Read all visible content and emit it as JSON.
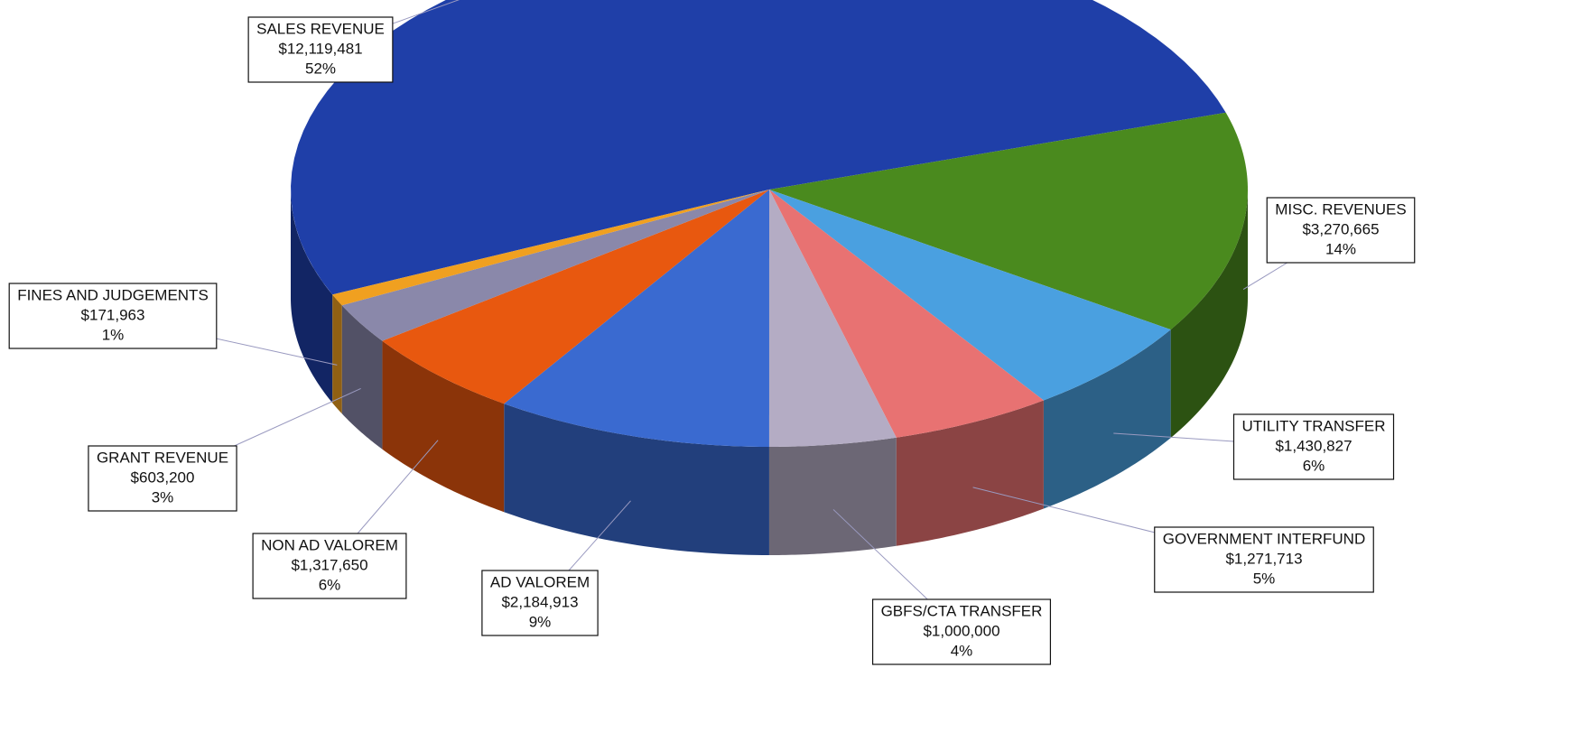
{
  "chart_data": {
    "type": "pie",
    "categories": [
      "SALES REVENUE",
      "MISC. REVENUES",
      "UTILITY TRANSFER",
      "GOVERNMENT INTERFUND",
      "GBFS/CTA TRANSFER",
      "AD VALOREM",
      "NON AD VALOREM",
      "GRANT REVENUE",
      "FINES AND JUDGEMENTS"
    ],
    "values": [
      12119481,
      3270665,
      1430827,
      1271713,
      1000000,
      2184913,
      1317650,
      603200,
      171963
    ],
    "value_labels": [
      "$12,119,481",
      "$3,270,665",
      "$1,430,827",
      "$1,271,713",
      "$1,000,000",
      "$2,184,913",
      "$1,317,650",
      "$603,200",
      "$171,963"
    ],
    "percents": [
      52,
      14,
      6,
      5,
      4,
      9,
      6,
      3,
      1
    ],
    "percent_labels": [
      "52%",
      "14%",
      "6%",
      "5%",
      "4%",
      "9%",
      "6%",
      "3%",
      "1%"
    ],
    "colors": [
      "#1f3fa8",
      "#4a8a1e",
      "#4aa0e0",
      "#e87272",
      "#b4acc4",
      "#3a6ad0",
      "#e8580f",
      "#8a88aa",
      "#f0a020"
    ]
  }
}
